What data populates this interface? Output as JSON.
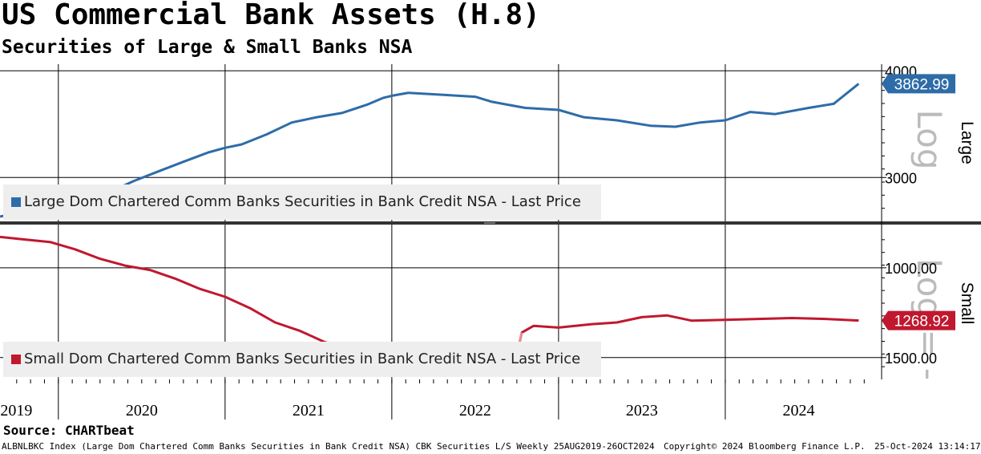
{
  "title": "US Commercial Bank Assets (H.8)",
  "subtitle": "Securities of Large & Small Banks NSA",
  "source": "Source: CHARTbeat",
  "footer": {
    "ticker_info": "ALBNLBKC Index (Large Dom Chartered Comm Banks Securities in Bank Credit NSA) CBK Securities L/S  Weekly 25AUG2019-26OCT2024",
    "copyright": "Copyright© 2024 Bloomberg Finance L.P.",
    "date": "25-Oct-2024 13:14:17"
  },
  "colors": {
    "large": "#2e6ca8",
    "small": "#c0182f",
    "small_highlight": "#e88a96",
    "grid": "#000000"
  },
  "chart_data": [
    {
      "type": "line",
      "panel": "top",
      "axis_side_label": "Large",
      "scale_watermark": "Log",
      "scale": "log",
      "ylim": [
        2700,
        4020
      ],
      "y_ticks": [
        3000,
        4000
      ],
      "y_tick_labels": [
        "3000",
        "4000"
      ],
      "last_value_label": "3862.99",
      "legend": "Large Dom Chartered Comm Banks Securities in Bank Credit NSA - Last Price",
      "series": [
        {
          "name": "Large Dom Chartered Comm Banks Securities in Bank Credit NSA - Last Price",
          "points": [
            [
              2019.65,
              2700
            ],
            [
              2019.8,
              2740
            ],
            [
              2019.95,
              2770
            ],
            [
              2020.0,
              2760
            ],
            [
              2020.1,
              2780
            ],
            [
              2020.2,
              2850
            ],
            [
              2020.3,
              2880
            ],
            [
              2020.45,
              2970
            ],
            [
              2020.6,
              3050
            ],
            [
              2020.75,
              3130
            ],
            [
              2020.9,
              3210
            ],
            [
              2021.0,
              3250
            ],
            [
              2021.1,
              3280
            ],
            [
              2021.25,
              3370
            ],
            [
              2021.4,
              3480
            ],
            [
              2021.55,
              3530
            ],
            [
              2021.7,
              3570
            ],
            [
              2021.85,
              3650
            ],
            [
              2021.95,
              3720
            ],
            [
              2022.0,
              3740
            ],
            [
              2022.1,
              3770
            ],
            [
              2022.3,
              3750
            ],
            [
              2022.5,
              3730
            ],
            [
              2022.6,
              3680
            ],
            [
              2022.8,
              3620
            ],
            [
              2023.0,
              3600
            ],
            [
              2023.15,
              3530
            ],
            [
              2023.35,
              3500
            ],
            [
              2023.55,
              3450
            ],
            [
              2023.7,
              3440
            ],
            [
              2023.85,
              3480
            ],
            [
              2024.0,
              3500
            ],
            [
              2024.15,
              3580
            ],
            [
              2024.3,
              3560
            ],
            [
              2024.5,
              3620
            ],
            [
              2024.65,
              3660
            ],
            [
              2024.8,
              3862.99
            ]
          ]
        }
      ]
    },
    {
      "type": "line",
      "panel": "bottom",
      "axis_side_label": "Small",
      "scale_watermark": "Log = -",
      "scale": "log",
      "inverted": true,
      "ylim": [
        850,
        1620
      ],
      "y_ticks": [
        1000,
        1500
      ],
      "y_tick_labels": [
        "1000.00",
        "1500.00"
      ],
      "last_value_label": "1268.92",
      "legend": "Small Dom Chartered Comm Banks Securities in Bank Credit NSA - Last Price",
      "series": [
        {
          "name": "Small Dom Chartered Comm Banks Securities in Bank Credit NSA - Last Price",
          "points": [
            [
              2019.65,
              870
            ],
            [
              2019.8,
              880
            ],
            [
              2019.95,
              890
            ],
            [
              2020.1,
              920
            ],
            [
              2020.25,
              960
            ],
            [
              2020.4,
              990
            ],
            [
              2020.55,
              1010
            ],
            [
              2020.7,
              1050
            ],
            [
              2020.85,
              1100
            ],
            [
              2021.0,
              1140
            ],
            [
              2021.15,
              1200
            ],
            [
              2021.3,
              1280
            ],
            [
              2021.45,
              1330
            ],
            [
              2021.6,
              1400
            ],
            [
              2021.75,
              1440
            ],
            [
              2021.9,
              1490
            ],
            [
              2022.0,
              1520
            ],
            [
              2022.15,
              1550
            ],
            [
              2022.3,
              1570
            ],
            [
              2022.45,
              1570
            ],
            [
              2022.6,
              1560
            ],
            [
              2022.7,
              1530
            ],
            [
              2022.75,
              1480
            ],
            [
              2022.78,
              1340
            ],
            [
              2022.85,
              1300
            ],
            [
              2023.0,
              1310
            ],
            [
              2023.2,
              1290
            ],
            [
              2023.35,
              1280
            ],
            [
              2023.5,
              1250
            ],
            [
              2023.65,
              1240
            ],
            [
              2023.8,
              1270
            ],
            [
              2024.0,
              1265
            ],
            [
              2024.2,
              1260
            ],
            [
              2024.4,
              1255
            ],
            [
              2024.6,
              1260
            ],
            [
              2024.8,
              1268.92
            ]
          ],
          "highlight_range": [
            2021.9,
            2022.78
          ]
        }
      ]
    }
  ],
  "x_axis": {
    "year_labels": [
      "2019",
      "2020",
      "2021",
      "2022",
      "2023",
      "2024"
    ],
    "range": [
      2019.65,
      2024.88
    ]
  }
}
